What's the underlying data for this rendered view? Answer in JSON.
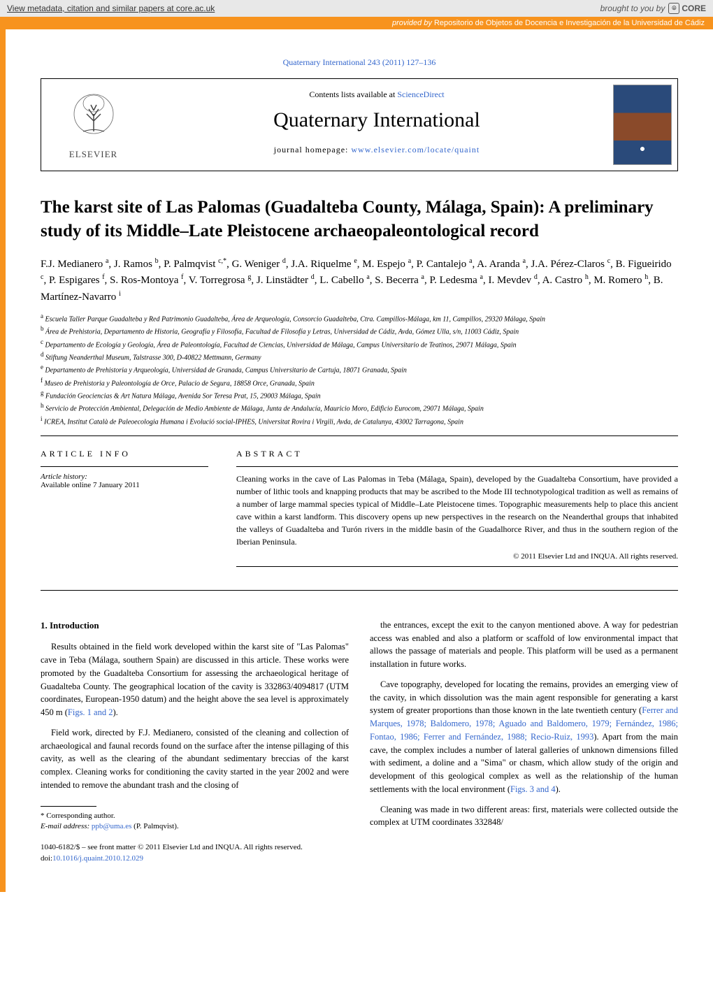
{
  "core": {
    "left_text": "View metadata, citation and similar papers at core.ac.uk",
    "brought": "brought to you by",
    "brand": "CORE"
  },
  "repo": {
    "provided_label": "provided by",
    "provided_val": "Repositorio de Objetos de Docencia e Investigación de la Universidad de Cádiz"
  },
  "journal_ref": "Quaternary International 243 (2011) 127–136",
  "header": {
    "contents_prefix": "Contents lists available at ",
    "contents_link": "ScienceDirect",
    "journal_title": "Quaternary International",
    "homepage_prefix": "journal homepage: ",
    "homepage_link": "www.elsevier.com/locate/quaint",
    "elsevier": "ELSEVIER"
  },
  "title": "The karst site of Las Palomas (Guadalteba County, Málaga, Spain): A preliminary study of its Middle–Late Pleistocene archaeopaleontological record",
  "authors_html": "F.J. Medianero <sup>a</sup>, J. Ramos <sup>b</sup>, P. Palmqvist <sup>c,*</sup>, G. Weniger <sup>d</sup>, J.A. Riquelme <sup>e</sup>, M. Espejo <sup>a</sup>, P. Cantalejo <sup>a</sup>, A. Aranda <sup>a</sup>, J.A. Pérez-Claros <sup>c</sup>, B. Figueirido <sup>c</sup>, P. Espigares <sup>f</sup>, S. Ros-Montoya <sup>f</sup>, V. Torregrosa <sup>g</sup>, J. Linstädter <sup>d</sup>, L. Cabello <sup>a</sup>, S. Becerra <sup>a</sup>, P. Ledesma <sup>a</sup>, I. Mevdev <sup>d</sup>, A. Castro <sup>h</sup>, M. Romero <sup>h</sup>, B. Martínez-Navarro <sup>i</sup>",
  "affiliations": [
    {
      "k": "a",
      "t": "Escuela Taller Parque Guadalteba y Red Patrimonio Guadalteba, Área de Arqueología, Consorcio Guadalteba, Ctra. Campillos-Málaga, km 11, Campillos, 29320 Málaga, Spain"
    },
    {
      "k": "b",
      "t": "Área de Prehistoria, Departamento de Historia, Geografía y Filosofía, Facultad de Filosofía y Letras, Universidad de Cádiz, Avda, Gómez Ulla, s/n, 11003 Cádiz, Spain"
    },
    {
      "k": "c",
      "t": "Departamento de Ecología y Geología, Área de Paleontología, Facultad de Ciencias, Universidad de Málaga, Campus Universitario de Teatinos, 29071 Málaga, Spain"
    },
    {
      "k": "d",
      "t": "Stiftung Neanderthal Museum, Talstrasse 300, D-40822 Mettmann, Germany"
    },
    {
      "k": "e",
      "t": "Departamento de Prehistoria y Arqueología, Universidad de Granada, Campus Universitario de Cartuja, 18071 Granada, Spain"
    },
    {
      "k": "f",
      "t": "Museo de Prehistoria y Paleontología de Orce, Palacio de Segura, 18858 Orce, Granada, Spain"
    },
    {
      "k": "g",
      "t": "Fundación Geociencias & Art Natura Málaga, Avenida Sor Teresa Prat, 15, 29003 Málaga, Spain"
    },
    {
      "k": "h",
      "t": "Servicio de Protección Ambiental, Delegación de Medio Ambiente de Málaga, Junta de Andalucía, Mauricio Moro, Edificio Eurocom, 29071 Málaga, Spain"
    },
    {
      "k": "i",
      "t": "ICREA, Institut Català de Paleoecologia Humana i Evolució social-IPHES, Universitat Rovira i Virgili, Avda, de Catalunya, 43002 Tarragona, Spain"
    }
  ],
  "info": {
    "heading": "ARTICLE INFO",
    "history_label": "Article history:",
    "history_line": "Available online 7 January 2011"
  },
  "abstract": {
    "heading": "ABSTRACT",
    "text": "Cleaning works in the cave of Las Palomas in Teba (Málaga, Spain), developed by the Guadalteba Consortium, have provided a number of lithic tools and knapping products that may be ascribed to the Mode III technotypological tradition as well as remains of a number of large mammal species typical of Middle–Late Pleistocene times. Topographic measurements help to place this ancient cave within a karst landform. This discovery opens up new perspectives in the research on the Neanderthal groups that inhabited the valleys of Guadalteba and Turón rivers in the middle basin of the Guadalhorce River, and thus in the southern region of the Iberian Peninsula.",
    "copyright": "© 2011 Elsevier Ltd and INQUA. All rights reserved."
  },
  "body": {
    "intro_heading": "1. Introduction",
    "col1": [
      "Results obtained in the field work developed within the karst site of \"Las Palomas\" cave in Teba (Málaga, southern Spain) are discussed in this article. These works were promoted by the Guadalteba Consortium for assessing the archaeological heritage of Guadalteba County. The geographical location of the cavity is 332863/4094817 (UTM coordinates, European-1950 datum) and the height above the sea level is approximately 450 m (<span class=\"link\">Figs. 1 and 2</span>).",
      "Field work, directed by F.J. Medianero, consisted of the cleaning and collection of archaeological and faunal records found on the surface after the intense pillaging of this cavity, as well as the clearing of the abundant sedimentary breccias of the karst complex. Cleaning works for conditioning the cavity started in the year 2002 and were intended to remove the abundant trash and the closing of"
    ],
    "col2": [
      "the entrances, except the exit to the canyon mentioned above. A way for pedestrian access was enabled and also a platform or scaffold of low environmental impact that allows the passage of materials and people. This platform will be used as a permanent installation in future works.",
      "Cave topography, developed for locating the remains, provides an emerging view of the cavity, in which dissolution was the main agent responsible for generating a karst system of greater proportions than those known in the late twentieth century (<span class=\"link\">Ferrer and Marques, 1978; Baldomero, 1978; Aguado and Baldomero, 1979; Fernández, 1986; Fontao, 1986; Ferrer and Fernández, 1988; Recio-Ruiz, 1993</span>). Apart from the main cave, the complex includes a number of lateral galleries of unknown dimensions filled with sediment, a doline and a \"Sima\" or chasm, which allow study of the origin and development of this geological complex as well as the relationship of the human settlements with the local environment (<span class=\"link\">Figs. 3 and 4</span>).",
      "Cleaning was made in two different areas: first, materials were collected outside the complex at UTM coordinates 332848/"
    ]
  },
  "footnote": {
    "corr": "* Corresponding author.",
    "email_label": "E-mail address:",
    "email": "ppb@uma.es",
    "email_who": "(P. Palmqvist)."
  },
  "bottom": {
    "issn": "1040-6182/$ – see front matter © 2011 Elsevier Ltd and INQUA. All rights reserved.",
    "doi_label": "doi:",
    "doi": "10.1016/j.quaint.2010.12.029"
  }
}
